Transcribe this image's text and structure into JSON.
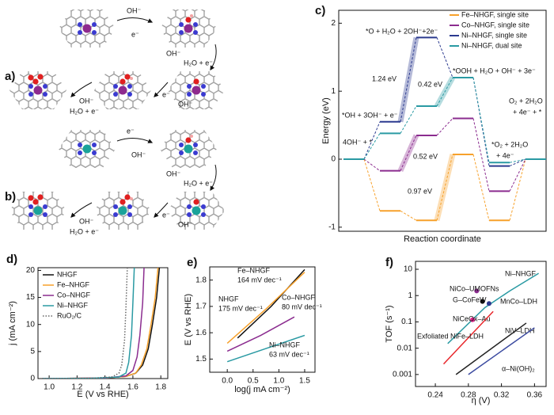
{
  "schemes": [
    {
      "label": "a)",
      "texts": [
        "OH⁻",
        "e⁻",
        "OH⁻",
        "H₂O + e⁻",
        "OH⁻",
        "H₂O + e⁻",
        "e⁻",
        "OH⁻"
      ]
    },
    {
      "label": "b)",
      "texts": [
        "e⁻",
        "OH⁻",
        "OH⁻",
        "H₂O + e⁻",
        "OH⁻",
        "H₂O + e⁻",
        "e⁻",
        "OH⁻"
      ]
    }
  ],
  "chart_data": [
    {
      "type": "energy_profile",
      "label": "c)",
      "ylabel": "Energy (eV)",
      "xlabel": "Reaction coordinate",
      "ylim": [
        -1.06,
        2.19
      ],
      "yticks": [
        -1,
        0,
        1,
        2
      ],
      "legend": "upper right",
      "series": [
        {
          "name": "Fe–NHGF, single site",
          "color": "#f7a12b",
          "values": [
            0,
            -0.76,
            -0.9,
            0.07,
            -0.9,
            0
          ]
        },
        {
          "name": "Co–NHGF, single site",
          "color": "#8b2c8f",
          "values": [
            0,
            -0.17,
            0.35,
            0.6,
            -0.47,
            0
          ]
        },
        {
          "name": "Ni–NHGF, single site",
          "color": "#2b3a8f",
          "values": [
            0,
            0.55,
            1.79,
            1.2,
            -0.1,
            0
          ]
        },
        {
          "name": "Ni–NHGF, dual site",
          "color": "#2a9aa3",
          "values": [
            0,
            0.38,
            0.78,
            1.2,
            -0.05,
            0
          ]
        }
      ],
      "annotations": [
        {
          "text": "1.24 eV",
          "color": "#2b3a8f"
        },
        {
          "text": "0.42 eV",
          "color": "#2a9aa3"
        },
        {
          "text": "0.52 eV",
          "color": "#8b2c8f"
        },
        {
          "text": "0.97 eV",
          "color": "#f7a12b"
        },
        {
          "text": "*O + H₂O + 2OH⁻+2e⁻",
          "color": "#111111"
        },
        {
          "text": "*OOH + H₂O + OH⁻ + 3e⁻",
          "color": "#111111"
        },
        {
          "text": "*OH + 3OH⁻ + e⁻",
          "color": "#111111"
        },
        {
          "text": "4OH⁻ + *",
          "color": "#111111"
        },
        {
          "text": "O₂ + 2H₂O",
          "color": "#111111"
        },
        {
          "text": "+ 4e⁻ + *",
          "color": "#111111"
        },
        {
          "text": "*O₂ + 2H₂O",
          "color": "#111111"
        },
        {
          "text": "+ 4e⁻",
          "color": "#111111"
        }
      ]
    },
    {
      "type": "line",
      "label": "d)",
      "ylabel": "j (mA cm⁻²)",
      "xlabel": "E (V vs RHE)",
      "xlim": [
        0.92,
        1.85
      ],
      "ylim": [
        0,
        20.5
      ],
      "xticks": [
        {
          "value": 1,
          "label": "1.0"
        },
        1.2,
        1.4,
        1.6,
        1.8
      ],
      "yticks": [
        0,
        5,
        10,
        15,
        20
      ],
      "legend": "upper left",
      "series": [
        {
          "name": "NHGF",
          "color": "#111111",
          "x": [
            0.95,
            1.4,
            1.55,
            1.62,
            1.67,
            1.71,
            1.74,
            1.77,
            1.79
          ],
          "values": [
            0,
            0.1,
            0.4,
            1,
            2.5,
            5.5,
            10,
            15,
            20.5
          ]
        },
        {
          "name": "Fe–NHGF",
          "color": "#f7a12b",
          "x": [
            0.95,
            1.4,
            1.55,
            1.62,
            1.66,
            1.7,
            1.73,
            1.76,
            1.78
          ],
          "values": [
            0,
            0.1,
            0.4,
            1,
            2.5,
            5.5,
            10,
            15,
            20.5
          ]
        },
        {
          "name": "Co–NHGF",
          "color": "#8b2c8f",
          "x": [
            0.95,
            1.4,
            1.55,
            1.6,
            1.63,
            1.65,
            1.67,
            1.68
          ],
          "values": [
            0,
            0.1,
            0.5,
            1.5,
            4,
            8,
            14,
            20.5
          ]
        },
        {
          "name": "Ni–NHGF",
          "color": "#2a9aa3",
          "x": [
            0.95,
            1.3,
            1.5,
            1.55,
            1.57,
            1.59,
            1.6,
            1.61
          ],
          "values": [
            0,
            0.05,
            0.3,
            1,
            3,
            8,
            14,
            20.5
          ]
        },
        {
          "name": "RuO₂/C",
          "color": "#666666",
          "linestyle": "dotted",
          "x": [
            0.95,
            1.3,
            1.45,
            1.5,
            1.52,
            1.54,
            1.55,
            1.56
          ],
          "values": [
            0,
            0.05,
            0.3,
            1,
            2.5,
            7,
            13,
            20.5
          ]
        }
      ]
    },
    {
      "type": "line",
      "label": "e)",
      "ylabel": "E (V vs RHE)",
      "xlabel": "log(j mA cm⁻²)",
      "xlim": [
        -0.34,
        1.7
      ],
      "ylim": [
        1.45,
        1.85
      ],
      "xticks": [
        {
          "value": 0,
          "label": "0.0"
        },
        0.5,
        {
          "value": 1,
          "label": "1.0"
        },
        1.5
      ],
      "yticks": [
        1.5,
        1.6,
        1.7,
        1.8
      ],
      "series": [
        {
          "name": "NHGF",
          "annotation": "175 mV dec⁻¹",
          "color": "#111111",
          "x": [
            0.2,
            0.85,
            1.5
          ],
          "values": [
            1.58,
            1.7,
            1.84
          ]
        },
        {
          "name": "Fe–NHGF",
          "annotation": "164 mV dec⁻¹",
          "color": "#f7a12b",
          "x": [
            0,
            0.75,
            1.5
          ],
          "values": [
            1.56,
            1.69,
            1.83
          ]
        },
        {
          "name": "Co–NHGF",
          "annotation": "80 mV dec⁻¹",
          "color": "#8b2c8f",
          "x": [
            0,
            0.65,
            1.3
          ],
          "values": [
            1.53,
            1.59,
            1.66
          ]
        },
        {
          "name": "Ni–NHGF",
          "annotation": "63 mV dec⁻¹",
          "color": "#2a9aa3",
          "x": [
            0,
            0.75,
            1.5
          ],
          "values": [
            1.49,
            1.54,
            1.59
          ]
        }
      ]
    },
    {
      "type": "line",
      "label": "f)",
      "ylabel": "TOF (s⁻¹)",
      "xlabel": "η (V)",
      "log_y": true,
      "xlim": [
        0.216,
        0.374
      ],
      "ylim": [
        0.00035,
        20
      ],
      "xticks": [
        0.24,
        0.28,
        0.32,
        0.36
      ],
      "yticks": [
        0.001,
        0.01,
        0.1,
        1,
        10
      ],
      "series": [
        {
          "name": "Ni–NHGF",
          "color": "#2a9aa3",
          "x": [
            0.255,
            0.3,
            0.33,
            0.365
          ],
          "values": [
            0.015,
            0.35,
            1.5,
            7
          ]
        },
        {
          "name": "NiCo–UMOFNs",
          "color": "#8b2c8f",
          "x": [
            0.29
          ],
          "values": [
            1.5
          ]
        },
        {
          "name": "G–CoFeW",
          "color": "#111111",
          "x": [
            0.297
          ],
          "values": [
            0.6
          ]
        },
        {
          "name": "MnCo–LDH",
          "color": "#2b3a8f",
          "x": [
            0.305
          ],
          "values": [
            0.5
          ]
        },
        {
          "name": "NiCeOx–Au",
          "color": "#e0208a",
          "x": [
            0.285
          ],
          "values": [
            0.12
          ]
        },
        {
          "name": "Exfoliated NiFe–LDH",
          "color": "#e8262b",
          "x": [
            0.25,
            0.31
          ],
          "values": [
            0.0025,
            0.25
          ]
        },
        {
          "name": "NiV–LDH",
          "color": "#222222",
          "x": [
            0.265,
            0.35
          ],
          "values": [
            0.001,
            0.09
          ]
        },
        {
          "name": "α–Ni(OH)₂",
          "color": "#3b4aa0",
          "x": [
            0.28,
            0.36
          ],
          "values": [
            0.001,
            0.06
          ]
        }
      ]
    }
  ]
}
